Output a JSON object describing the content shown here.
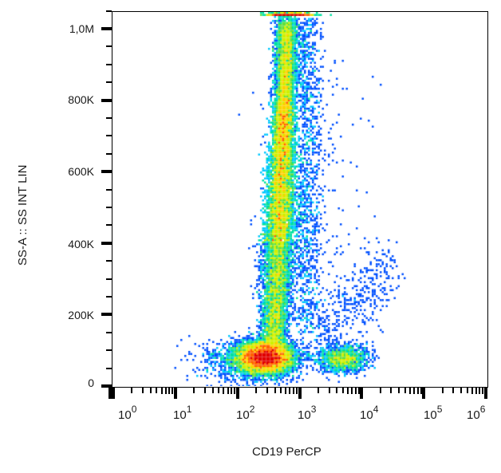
{
  "chart_data": {
    "type": "scatter",
    "subtype": "flow-cytometry-density-dot-plot",
    "title": "",
    "xlabel": "CD19 PerCP",
    "ylabel": "SS-A :: SS INT LIN",
    "x_scale": "log",
    "x_range": [
      1,
      1000000
    ],
    "x_ticks": [
      "10^0",
      "10^1",
      "10^2",
      "10^3",
      "10^4",
      "10^5",
      "10^6"
    ],
    "y_scale": "linear",
    "y_range": [
      0,
      1050000
    ],
    "y_ticks": [
      {
        "value": 0,
        "label": "0"
      },
      {
        "value": 200000,
        "label": "200K"
      },
      {
        "value": 400000,
        "label": "400K"
      },
      {
        "value": 600000,
        "label": "600K"
      },
      {
        "value": 800000,
        "label": "800K"
      },
      {
        "value": 1000000,
        "label": "1,0M"
      }
    ],
    "colormap": [
      "#0000c8",
      "#0050ff",
      "#00c8ff",
      "#00e0a0",
      "#60e040",
      "#d0f000",
      "#ffd000",
      "#ff6000",
      "#e00000"
    ],
    "grid": false,
    "legend": null,
    "populations": [
      {
        "name": "lymphocytes CD19-negative low SS",
        "x_center": 280,
        "y_center": 80000,
        "x_spread_log": 0.25,
        "y_spread": 25000,
        "density": "very high",
        "peak_color": "red"
      },
      {
        "name": "granulocytes high SS column",
        "x_center": 550,
        "y_center": 580000,
        "x_spread_log": 0.15,
        "y_spread": 200000,
        "density": "high",
        "peak_color": "yellow-green"
      },
      {
        "name": "CD19+ B-cells",
        "x_center": 5000,
        "y_center": 75000,
        "x_spread_log": 0.2,
        "y_spread": 20000,
        "density": "medium",
        "peak_color": "cyan"
      },
      {
        "name": "saturated events at top",
        "x_center": 800,
        "y_center": 1040000,
        "density": "medium",
        "peak_color": "green-yellow"
      }
    ]
  },
  "axis": {
    "y_labels": [
      "1,0M",
      "800K",
      "600K",
      "400K",
      "200K",
      "0"
    ],
    "x_labels": [
      {
        "base": "10",
        "exp": "0"
      },
      {
        "base": "10",
        "exp": "1"
      },
      {
        "base": "10",
        "exp": "2"
      },
      {
        "base": "10",
        "exp": "3"
      },
      {
        "base": "10",
        "exp": "4"
      },
      {
        "base": "10",
        "exp": "5"
      },
      {
        "base": "10",
        "exp": "6"
      }
    ]
  },
  "labels": {
    "x_axis_title": "CD19 PerCP",
    "y_axis_title": "SS-A :: SS INT LIN"
  }
}
